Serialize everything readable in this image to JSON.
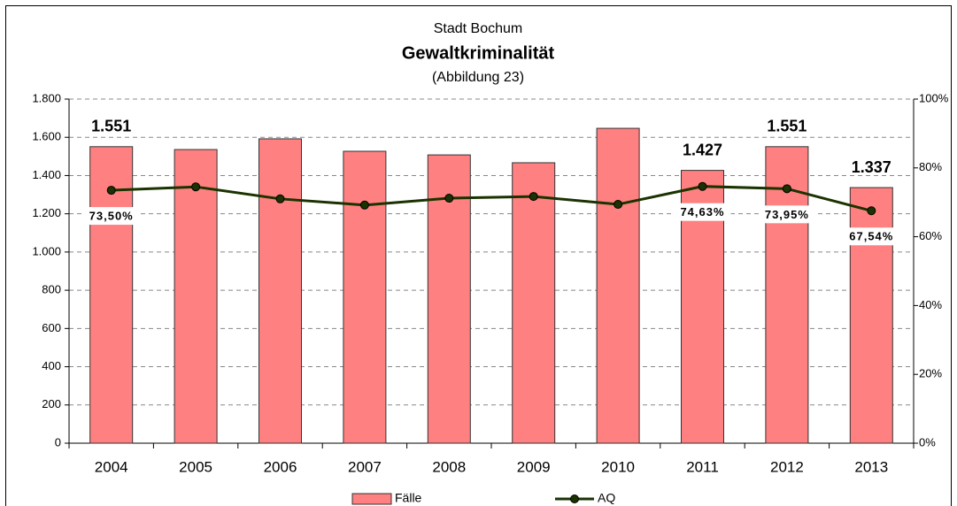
{
  "chart_data": {
    "type": "bar",
    "title": "Stadt Bochum",
    "subtitle": "Gewaltkriminalität",
    "caption": "(Abbildung 23)",
    "categories": [
      "2004",
      "2005",
      "2006",
      "2007",
      "2008",
      "2009",
      "2010",
      "2011",
      "2012",
      "2013"
    ],
    "series": [
      {
        "name": "Fälle",
        "type": "bar",
        "color": "#ff8080",
        "axis": "y",
        "values": [
          1551,
          1536,
          1592,
          1527,
          1508,
          1467,
          1647,
          1427,
          1551,
          1337
        ],
        "value_labels": [
          "1.551",
          null,
          null,
          null,
          null,
          null,
          null,
          "1.427",
          "1.551",
          "1.337"
        ]
      },
      {
        "name": "AQ",
        "type": "line",
        "color": "#1a3300",
        "axis": "y2",
        "values": [
          73.5,
          74.5,
          71.0,
          69.2,
          71.2,
          71.7,
          69.4,
          74.63,
          73.95,
          67.54
        ],
        "value_labels": [
          "73,50%",
          null,
          null,
          null,
          null,
          null,
          null,
          "74,63%",
          "73,95%",
          "67,54%"
        ]
      }
    ],
    "ylim": [
      0,
      1800
    ],
    "yticks": [
      0,
      200,
      400,
      600,
      800,
      {
        "value": 1000,
        "label": "1.000"
      },
      {
        "value": 1200,
        "label": "1.200"
      },
      {
        "value": 1400,
        "label": "1.400"
      },
      {
        "value": 1600,
        "label": "1.600"
      },
      {
        "value": 1800,
        "label": "1.800"
      }
    ],
    "y2lim": [
      0,
      100
    ],
    "y2ticks": [
      {
        "value": 0,
        "label": "0%"
      },
      {
        "value": 20,
        "label": "20%"
      },
      {
        "value": 40,
        "label": "40%"
      },
      {
        "value": 60,
        "label": "60%"
      },
      {
        "value": 80,
        "label": "80%"
      },
      {
        "value": 100,
        "label": "100%"
      }
    ],
    "grid": true,
    "legend": "bottom"
  }
}
